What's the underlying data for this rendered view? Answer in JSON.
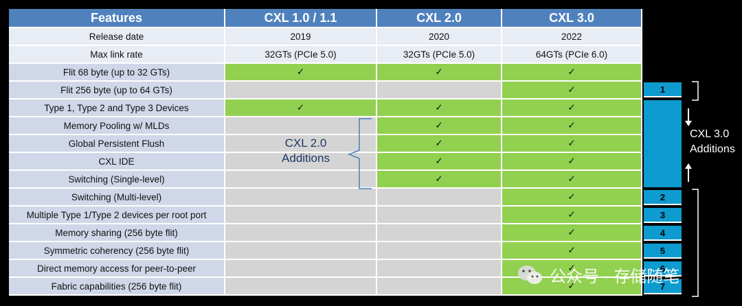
{
  "table": {
    "headers": [
      "Features",
      "CXL 1.0 / 1.1",
      "CXL 2.0",
      "CXL 3.0"
    ],
    "info_rows": [
      {
        "label": "Release date",
        "values": [
          "2019",
          "2020",
          "2022"
        ]
      },
      {
        "label": "Max link rate",
        "values": [
          "32GTs (PCIe 5.0)",
          "32GTs (PCIe 5.0)",
          "64GTs (PCIe 6.0)"
        ]
      }
    ],
    "feature_rows": [
      {
        "label": "Flit 68 byte (up to 32 GTs)",
        "support": [
          true,
          true,
          true
        ]
      },
      {
        "label": "Flit 256 byte (up to 64 GTs)",
        "support": [
          false,
          false,
          true
        ]
      },
      {
        "label": "Type 1, Type 2 and Type 3 Devices",
        "support": [
          true,
          true,
          true
        ]
      },
      {
        "label": "Memory Pooling w/ MLDs",
        "support": [
          false,
          true,
          true
        ]
      },
      {
        "label": "Global Persistent Flush",
        "support": [
          false,
          true,
          true
        ]
      },
      {
        "label": "CXL IDE",
        "support": [
          false,
          true,
          true
        ]
      },
      {
        "label": "Switching (Single-level)",
        "support": [
          false,
          true,
          true
        ]
      },
      {
        "label": "Switching (Multi-level)",
        "support": [
          false,
          false,
          true
        ]
      },
      {
        "label": "Multiple Type 1/Type 2 devices per root port",
        "support": [
          false,
          false,
          true
        ]
      },
      {
        "label": "Memory sharing (256 byte flit)",
        "support": [
          false,
          false,
          true
        ]
      },
      {
        "label": "Symmetric coherency (256 byte flit)",
        "support": [
          false,
          false,
          true
        ]
      },
      {
        "label": "Direct memory access for peer-to-peer",
        "support": [
          false,
          false,
          true
        ]
      },
      {
        "label": "Fabric capabilities (256 byte flit)",
        "support": [
          false,
          false,
          true
        ]
      }
    ],
    "check_mark": "✓"
  },
  "annotations": {
    "cxl2_line1": "CXL 2.0",
    "cxl2_line2": "Additions",
    "cxl3_line1": "CXL 3.0",
    "cxl3_line2": "Additions"
  },
  "badges": [
    "1",
    "2",
    "3",
    "4",
    "5",
    "6",
    "7"
  ],
  "watermark": {
    "text": "公众号 · 存储随笔",
    "icon": "wechat-icon"
  },
  "colors": {
    "header": "#4f81bd",
    "supported": "#92d050",
    "unsupported": "#d4d4d4",
    "feature_label": "#cfd7e8",
    "badge": "#0e9bcf"
  }
}
